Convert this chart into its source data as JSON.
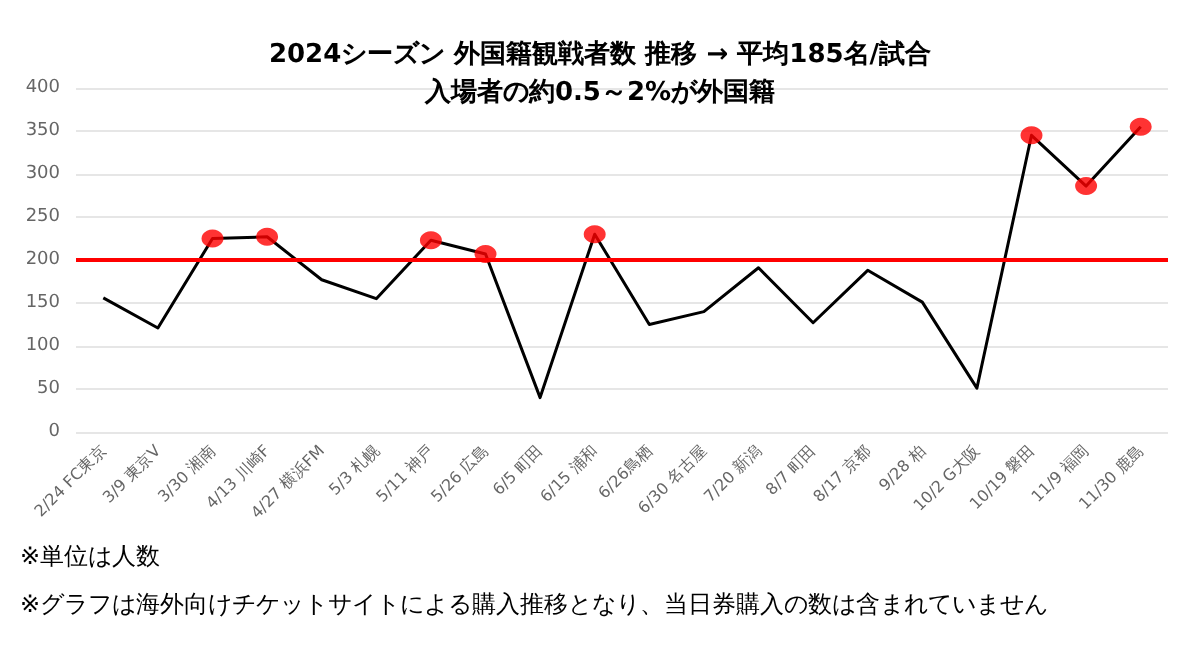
{
  "chart_data": {
    "type": "line",
    "title": "2024シーズン 外国籍観戦者数 推移 → 平均185名/試合",
    "subtitle": "入場者の約0.5～2%が外国籍",
    "categories": [
      "2/24 FC東京",
      "3/9 東京V",
      "3/30 湘南",
      "4/13 川崎F",
      "4/27 横浜FM",
      "5/3 札幌",
      "5/11 神戸",
      "5/26 広島",
      "6/5 町田",
      "6/15 浦和",
      "6/26鳥栖",
      "6/30 名古屋",
      "7/20 新潟",
      "8/7 町田",
      "8/17 京都",
      "9/28 柏",
      "10/2 G大阪",
      "10/19 磐田",
      "11/9 福岡",
      "11/30 鹿島"
    ],
    "series": [
      {
        "color": "#000000",
        "marker": "none",
        "values": [
          156,
          121,
          225,
          227,
          177,
          155,
          223,
          207,
          40,
          230,
          125,
          140,
          191,
          127,
          188,
          151,
          51,
          345,
          286,
          355
        ]
      },
      {
        "type": "scatter",
        "color": "#ff0000",
        "marker": "circle",
        "x": [
          "3/30 湘南",
          "4/13 川崎F",
          "5/11 神戸",
          "5/26 広島",
          "6/15 浦和",
          "10/19 磐田",
          "11/9 福岡",
          "11/30 鹿島"
        ],
        "values": [
          225,
          227,
          223,
          207,
          230,
          345,
          286,
          355
        ]
      }
    ],
    "ylim": [
      0,
      400
    ],
    "yticks": [
      0,
      50,
      100,
      150,
      200,
      250,
      300,
      350,
      400
    ],
    "grid": "y",
    "ref_lines": [
      {
        "axis": "y",
        "value": 200,
        "color": "#ff0000"
      }
    ],
    "annotations": [
      "※単位は人数",
      "※グラフは海外向けチケットサイトによる購入推移となり、当日券購入の数は含まれていません"
    ]
  }
}
